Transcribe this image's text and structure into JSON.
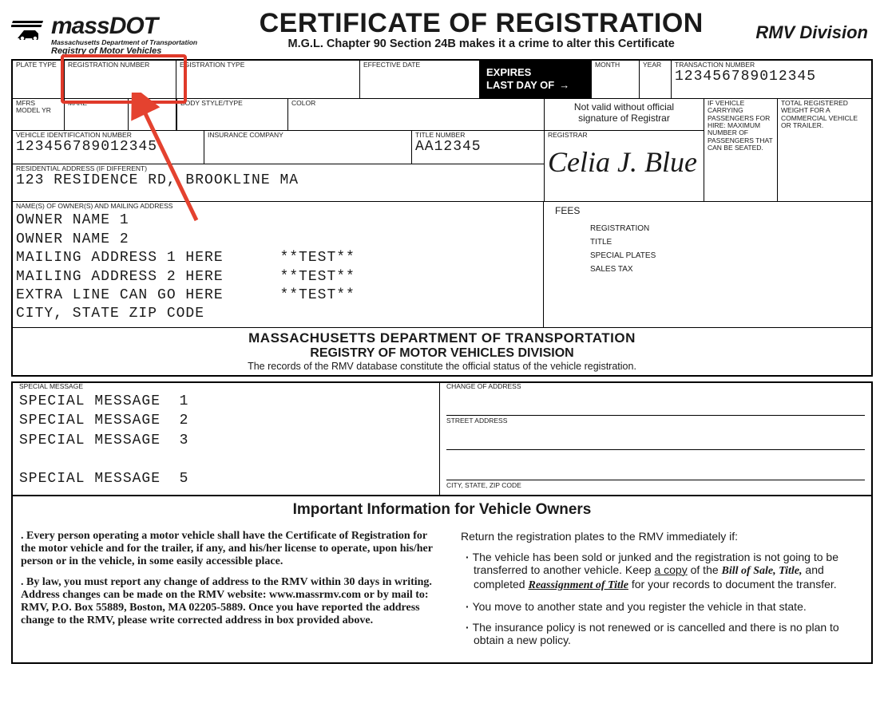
{
  "logo": {
    "main": "massDOT",
    "sub1": "Massachusetts Department of Transportation",
    "sub2": "Registry of Motor Vehicles"
  },
  "title": {
    "main": "CERTIFICATE OF REGISTRATION",
    "sub": "M.G.L. Chapter 90 Section 24B makes it a crime to alter this Certificate",
    "division": "RMV Division"
  },
  "row1": {
    "plate_type_lbl": "PLATE TYPE",
    "reg_num_lbl": "REGISTRATION NUMBER",
    "reg_type_lbl": "EGISTRATION TYPE",
    "eff_date_lbl": "EFFECTIVE DATE",
    "expires1": "EXPIRES",
    "expires2": "LAST DAY OF",
    "month_lbl": "MONTH",
    "year_lbl": "YEAR",
    "trans_lbl": "TRANSACTION NUMBER",
    "trans_val": "123456789012345"
  },
  "row2": {
    "model_lbl": "MFRS MODEL YR",
    "make_lbl": "MAKE",
    "model2_lbl": "MODEL",
    "body_lbl": "BODY STYLE/TYPE",
    "color_lbl": "COLOR",
    "notvalid1": "Not valid without official",
    "notvalid2": "signature of Registrar",
    "pax_lbl": "IF VEHICLE CARRYING PASSENGERS FOR HIRE: MAXIMUM NUMBER OF PASSENGERS THAT CAN BE SEATED.",
    "weight_lbl": "TOTAL REGISTERED WEIGHT FOR A COMMERCIAL VEHICLE OR TRAILER."
  },
  "row3": {
    "vin_lbl": "VEHICLE IDENTIFICATION NUMBER",
    "vin_val": "123456789012345",
    "ins_lbl": "INSURANCE COMPANY",
    "title_lbl": "TITLE NUMBER",
    "title_val": "AA12345",
    "registrar_lbl": "REGISTRAR",
    "signature": "Celia J. Blue"
  },
  "row4": {
    "res_lbl": "RESIDENTIAL ADDRESS (IF DIFFERENT)",
    "res_val": "123 RESIDENCE RD, BROOKLINE MA"
  },
  "row5": {
    "owner_lbl": "NAME(S) OF OWNER(S) AND MAILING ADDRESS",
    "lines": [
      "OWNER NAME 1",
      "OWNER NAME 2",
      "MAILING ADDRESS 1 HERE      **TEST**",
      "MAILING ADDRESS 2 HERE      **TEST**",
      "EXTRA LINE CAN GO HERE      **TEST**",
      "CITY, STATE ZIP CODE"
    ],
    "fees_title": "FEES",
    "fees": [
      "REGISTRATION",
      "TITLE",
      "SPECIAL PLATES",
      "SALES TAX"
    ]
  },
  "dept": {
    "l1": "MASSACHUSETTS DEPARTMENT OF TRANSPORTATION",
    "l2": "REGISTRY OF MOTOR VEHICLES DIVISION",
    "l3": "The records of the RMV database constitute the official status of the vehicle registration."
  },
  "special": {
    "lbl": "SPECIAL MESSAGE",
    "lines": [
      "SPECIAL MESSAGE  1",
      "SPECIAL MESSAGE  2",
      "SPECIAL MESSAGE  3",
      "",
      "SPECIAL MESSAGE  5"
    ]
  },
  "coa": {
    "lbl": "CHANGE OF ADDRESS",
    "street": "STREET ADDRESS",
    "city": "CITY, STATE, ZIP CODE"
  },
  "info": {
    "banner": "Important Information for Vehicle Owners",
    "left1": ". Every person operating a motor vehicle shall have the Certifi­cate of Registration for the motor vehicle and for the trailer, if any, and his/her license to operate, upon his/her person or in the vehicle, in some easily accessible place.",
    "left2": ". By law, you must report any change of address to the RMV within 30 days in writing. Address changes can be made on the RMV website: www.massrmv.com or by mail to: RMV, P.O. Box 55889, Boston, MA 02205-5889. Once you have reported the address change to the RMV, please write corrected address in box provided above.",
    "right_intro": "Return the registration plates to the RMV immediately if:",
    "r1a": "The vehicle has been sold or junked and the registration is not going to be transferred to another vehicle. Keep ",
    "r1b": "a copy",
    "r1c": " of the ",
    "r1d": "Bill of Sale, Title,",
    "r1e": " and completed ",
    "r1f": "Reassignment of Title",
    "r1g": " for your records to document the transfer.",
    "r2": "You move to another state and you register the vehicle in that state.",
    "r3": "The insurance policy is not renewed or is cancelled and there is no plan to obtain a new policy."
  },
  "highlight": {
    "box_color": "#e03a2a",
    "arrow_color": "#e4422f"
  }
}
